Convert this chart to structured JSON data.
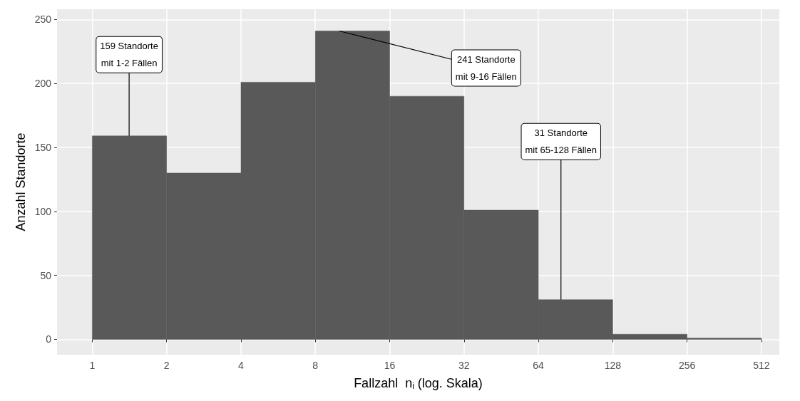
{
  "chart_data": {
    "type": "histogram",
    "xlabel": "Fallzahl  n$_{i}$ (log. Skala)",
    "ylabel": "Anzahl Standorte",
    "bins": [
      1,
      2,
      4,
      8,
      16,
      32,
      64,
      128,
      256,
      512
    ],
    "values": [
      159,
      130,
      201,
      241,
      190,
      101,
      31,
      4,
      1
    ],
    "color": "#595959",
    "log": "x",
    "xlim": [
      0.72,
      605
    ],
    "xticks": [
      1,
      2,
      4,
      8,
      16,
      32,
      64,
      128,
      256,
      512
    ],
    "ylim": [
      -12,
      258
    ],
    "yticks": [
      0,
      50,
      100,
      150,
      200,
      250
    ],
    "grid": true,
    "annotations": [
      {
        "text": "159 Standorte\nmit 1-2 Fällen",
        "x": 1.41,
        "y": 159
      },
      {
        "text": "241 Standorte\nmit 9-16 Fällen",
        "x": 10,
        "y": 241
      },
      {
        "text": "31 Standorte\nmit 65-128 Fällen",
        "x": 79,
        "y": 31
      }
    ]
  }
}
